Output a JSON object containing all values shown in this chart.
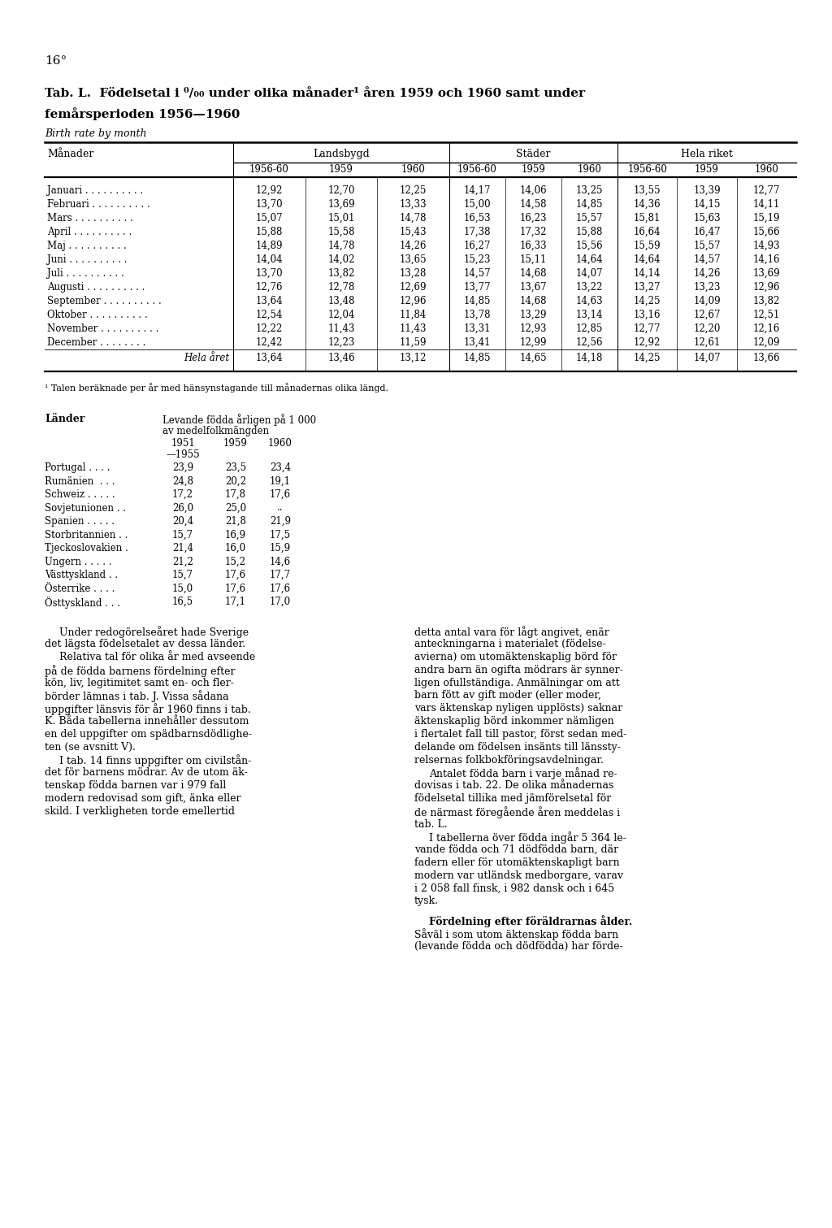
{
  "page_number": "16°",
  "title_line1": "Tab. L.  Födelsetal i ⁰/₀₀ under olika månader¹ åren 1959 och 1960 samt under",
  "title_line2": "femårsperioden 1956—1960",
  "subtitle": "Birth rate by month",
  "col_manader": "Månader",
  "col_landsbygd": "Landsbygd",
  "col_stader": "Städer",
  "col_hela": "Hela riket",
  "sub_cols": [
    "1956-60",
    "1959",
    "1960"
  ],
  "months": [
    "Januari . . . . . . . . . .",
    "Februari . . . . . . . . . .",
    "Mars . . . . . . . . . .",
    "April . . . . . . . . . .",
    "Maj . . . . . . . . . .",
    "Juni . . . . . . . . . .",
    "Juli . . . . . . . . . .",
    "Augusti . . . . . . . . . .",
    "September . . . . . . . . . .",
    "Oktober . . . . . . . . . .",
    "November . . . . . . . . . .",
    "December . . . . . . . .",
    "Hela året"
  ],
  "landsbygd": [
    [
      "12,92",
      "12,70",
      "12,25"
    ],
    [
      "13,70",
      "13,69",
      "13,33"
    ],
    [
      "15,07",
      "15,01",
      "14,78"
    ],
    [
      "15,88",
      "15,58",
      "15,43"
    ],
    [
      "14,89",
      "14,78",
      "14,26"
    ],
    [
      "14,04",
      "14,02",
      "13,65"
    ],
    [
      "13,70",
      "13,82",
      "13,28"
    ],
    [
      "12,76",
      "12,78",
      "12,69"
    ],
    [
      "13,64",
      "13,48",
      "12,96"
    ],
    [
      "12,54",
      "12,04",
      "11,84"
    ],
    [
      "12,22",
      "11,43",
      "11,43"
    ],
    [
      "12,42",
      "12,23",
      "11,59"
    ],
    [
      "13,64",
      "13,46",
      "13,12"
    ]
  ],
  "stader": [
    [
      "14,17",
      "14,06",
      "13,25"
    ],
    [
      "15,00",
      "14,58",
      "14,85"
    ],
    [
      "16,53",
      "16,23",
      "15,57"
    ],
    [
      "17,38",
      "17,32",
      "15,88"
    ],
    [
      "16,27",
      "16,33",
      "15,56"
    ],
    [
      "15,23",
      "15,11",
      "14,64"
    ],
    [
      "14,57",
      "14,68",
      "14,07"
    ],
    [
      "13,77",
      "13,67",
      "13,22"
    ],
    [
      "14,85",
      "14,68",
      "14,63"
    ],
    [
      "13,78",
      "13,29",
      "13,14"
    ],
    [
      "13,31",
      "12,93",
      "12,85"
    ],
    [
      "13,41",
      "12,99",
      "12,56"
    ],
    [
      "14,85",
      "14,65",
      "14,18"
    ]
  ],
  "hela_riket": [
    [
      "13,55",
      "13,39",
      "12,77"
    ],
    [
      "14,36",
      "14,15",
      "14,11"
    ],
    [
      "15,81",
      "15,63",
      "15,19"
    ],
    [
      "16,64",
      "16,47",
      "15,66"
    ],
    [
      "15,59",
      "15,57",
      "14,93"
    ],
    [
      "14,64",
      "14,57",
      "14,16"
    ],
    [
      "14,14",
      "14,26",
      "13,69"
    ],
    [
      "13,27",
      "13,23",
      "12,96"
    ],
    [
      "14,25",
      "14,09",
      "13,82"
    ],
    [
      "13,16",
      "12,67",
      "12,51"
    ],
    [
      "12,77",
      "12,20",
      "12,16"
    ],
    [
      "12,92",
      "12,61",
      "12,09"
    ],
    [
      "14,25",
      "14,07",
      "13,66"
    ]
  ],
  "footnote": "¹ Talen beräknade per år med hänsynstagande till månadernas olika längd.",
  "lander_header": "Länder",
  "lander_col_title": "Levande födda årligen på 1 000",
  "lander_col_title2": "av medelfolkmängden",
  "lander_sub1": "1951",
  "lander_sub1b": "—1955",
  "lander_sub2": "1959",
  "lander_sub3": "1960",
  "lander_rows": [
    [
      "Portugal . . . .",
      "23,9",
      "23,5",
      "23,4"
    ],
    [
      "Rumänien  . . .",
      "24,8",
      "20,2",
      "19,1"
    ],
    [
      "Schweiz . . . . .",
      "17,2",
      "17,8",
      "17,6"
    ],
    [
      "Sovjetunionen . .",
      "26,0",
      "25,0",
      ".."
    ],
    [
      "Spanien . . . . .",
      "20,4",
      "21,8",
      "21,9"
    ],
    [
      "Storbritannien . .",
      "15,7",
      "16,9",
      "17,5"
    ],
    [
      "Tjeckoslovakien .",
      "21,4",
      "16,0",
      "15,9"
    ],
    [
      "Ungern . . . . .",
      "21,2",
      "15,2",
      "14,6"
    ],
    [
      "Västtyskland . .",
      "15,7",
      "17,6",
      "17,7"
    ],
    [
      "Österrike . . . .",
      "15,0",
      "17,6",
      "17,6"
    ],
    [
      "Östtyskland . . .",
      "16,5",
      "17,1",
      "17,0"
    ]
  ],
  "body_left": [
    "   Under redogörelseåret hade Sverige",
    "det lägsta födelsetalet av dessa länder.",
    "   Relativa tal för olika år med avseende",
    "på de födda barnens fördelning efter",
    "kön, liv, legitimitet samt en- och fler-",
    "börder lämnas i tab. J. Vissa sådana",
    "uppgifter länsvis för år 1960 finns i tab.",
    "K. Båda tabellerna innehåller dessutom",
    "en del uppgifter om spädbarnsdödlighe-",
    "ten (se avsnitt V).",
    "   I tab. 14 finns uppgifter om civilstån-",
    "det för barnens mödrar. Av de utom äk-",
    "tenskap födda barnen var i 979 fall",
    "modern redovisad som gift, änka eller",
    "skild. I verkligheten torde emellertid"
  ],
  "body_right": [
    "detta antal vara för lågt angivet, enär",
    "anteckningarna i materialet (födelse-",
    "avierna) om utomäktenskaplig börd för",
    "andra barn än ogifta mödrars är synner-",
    "ligen ofullständiga. Anmälningar om att",
    "barn fött av gift moder (eller moder,",
    "vars äktenskap nyligen upplösts) saknar",
    "äktenskaplig börd inkommer nämligen",
    "i flertalet fall till pastor, först sedan med-",
    "delande om födelsen insänts till länssty-",
    "relsernas folkbokföringsavdelningar.",
    "   Antalet födda barn i varje månad re-",
    "dovisas i tab. 22. De olika månadernas",
    "födelsetal tillika med jämförelsetal för",
    "de närmast föregående åren meddelas i",
    "tab. L.",
    "   I tabellerna över födda ingår 5 364 le-",
    "vande födda och 71 dödfödda barn, där",
    "fadern eller för utomäktenskapligt barn",
    "modern var utländsk medborgare, varav",
    "i 2 058 fall finsk, i 982 dansk och i 645",
    "tysk."
  ],
  "fordelning_bold": "Fördelning efter föräldrarnas ålder.",
  "fordelning_rest": "Såväl i som utom äktenskap födda barn",
  "fordelning_rest2": "(levande födda och dödfödda) har förde-"
}
